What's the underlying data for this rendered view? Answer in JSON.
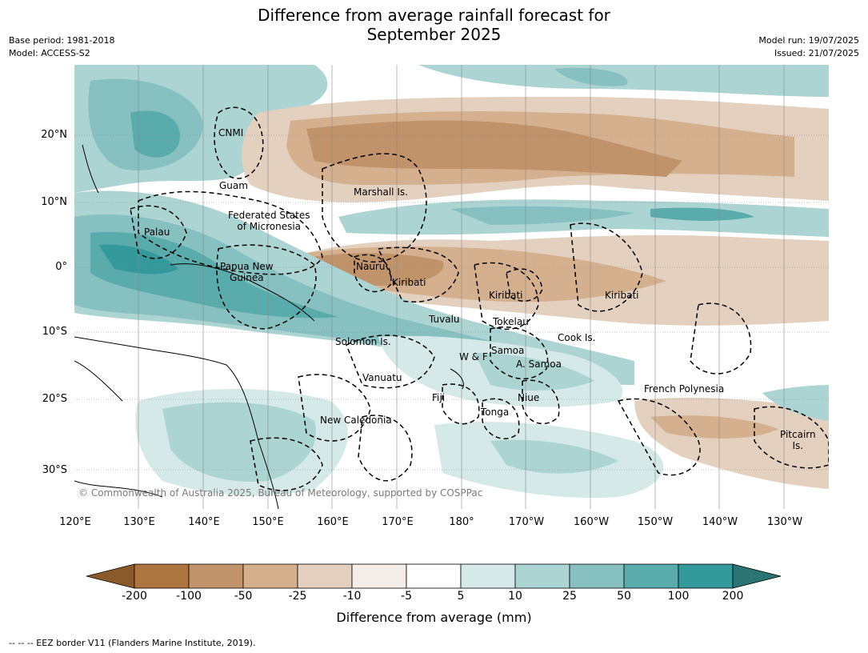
{
  "title_line1": "Difference from average rainfall forecast for",
  "title_line2": "September 2025",
  "meta_left": [
    "Base period: 1981-2018",
    "Model: ACCESS-S2"
  ],
  "meta_right": [
    "Model run: 19/07/2025",
    "Issued: 21/07/2025"
  ],
  "lat_ticks": [
    "20°N",
    "10°N",
    "0°",
    "10°S",
    "20°S",
    "30°S"
  ],
  "lon_ticks": [
    "120°E",
    "130°E",
    "140°E",
    "150°E",
    "160°E",
    "170°E",
    "180°",
    "170°W",
    "160°W",
    "150°W",
    "140°W",
    "130°W"
  ],
  "places": {
    "cnmi": "CNMI",
    "guam": "Guam",
    "marshall": "Marshall Is.",
    "fsm1": "Federated States",
    "fsm2": "of Micronesia",
    "palau": "Palau",
    "png1": "Papua New",
    "png2": "Guinea",
    "nauru": "Nauru",
    "kiribati1": "Kiribati",
    "kiribati2": "Kiribati",
    "kiribati3": "Kiribati",
    "tuvalu": "Tuvalu",
    "tokelau": "Tokelau",
    "cook": "Cook Is.",
    "solomon": "Solomon Is.",
    "wf": "W & F",
    "samoa": "Samoa",
    "asamoa": "A. Samoa",
    "vanuatu": "Vanuatu",
    "fiji": "Fiji",
    "niue": "Niue",
    "tonga": "Tonga",
    "french_polynesia": "French Polynesia",
    "newcal": "New Caledonia",
    "pitcairn1": "Pitcairn",
    "pitcairn2": "Is."
  },
  "copyright": "© Commonwealth of Australia 2025, Bureau of Meteorology, supported by COSPPac",
  "colorbar": {
    "labels": [
      "-200",
      "-100",
      "-50",
      "-25",
      "-10",
      "-5",
      "5",
      "10",
      "25",
      "50",
      "100",
      "200"
    ],
    "colors": [
      "#8b5a2b",
      "#ad7640",
      "#c0936a",
      "#d4b08e",
      "#e4d0bf",
      "#f4ece6",
      "#ffffff",
      "#d5eae8",
      "#acd4d3",
      "#86c0c0",
      "#5aabab",
      "#33999a",
      "#2a7474"
    ],
    "title": "Difference from average (mm)"
  },
  "footer": "--  --  -- EEZ border V11 (Flanders Marine Institute, 2019)."
}
